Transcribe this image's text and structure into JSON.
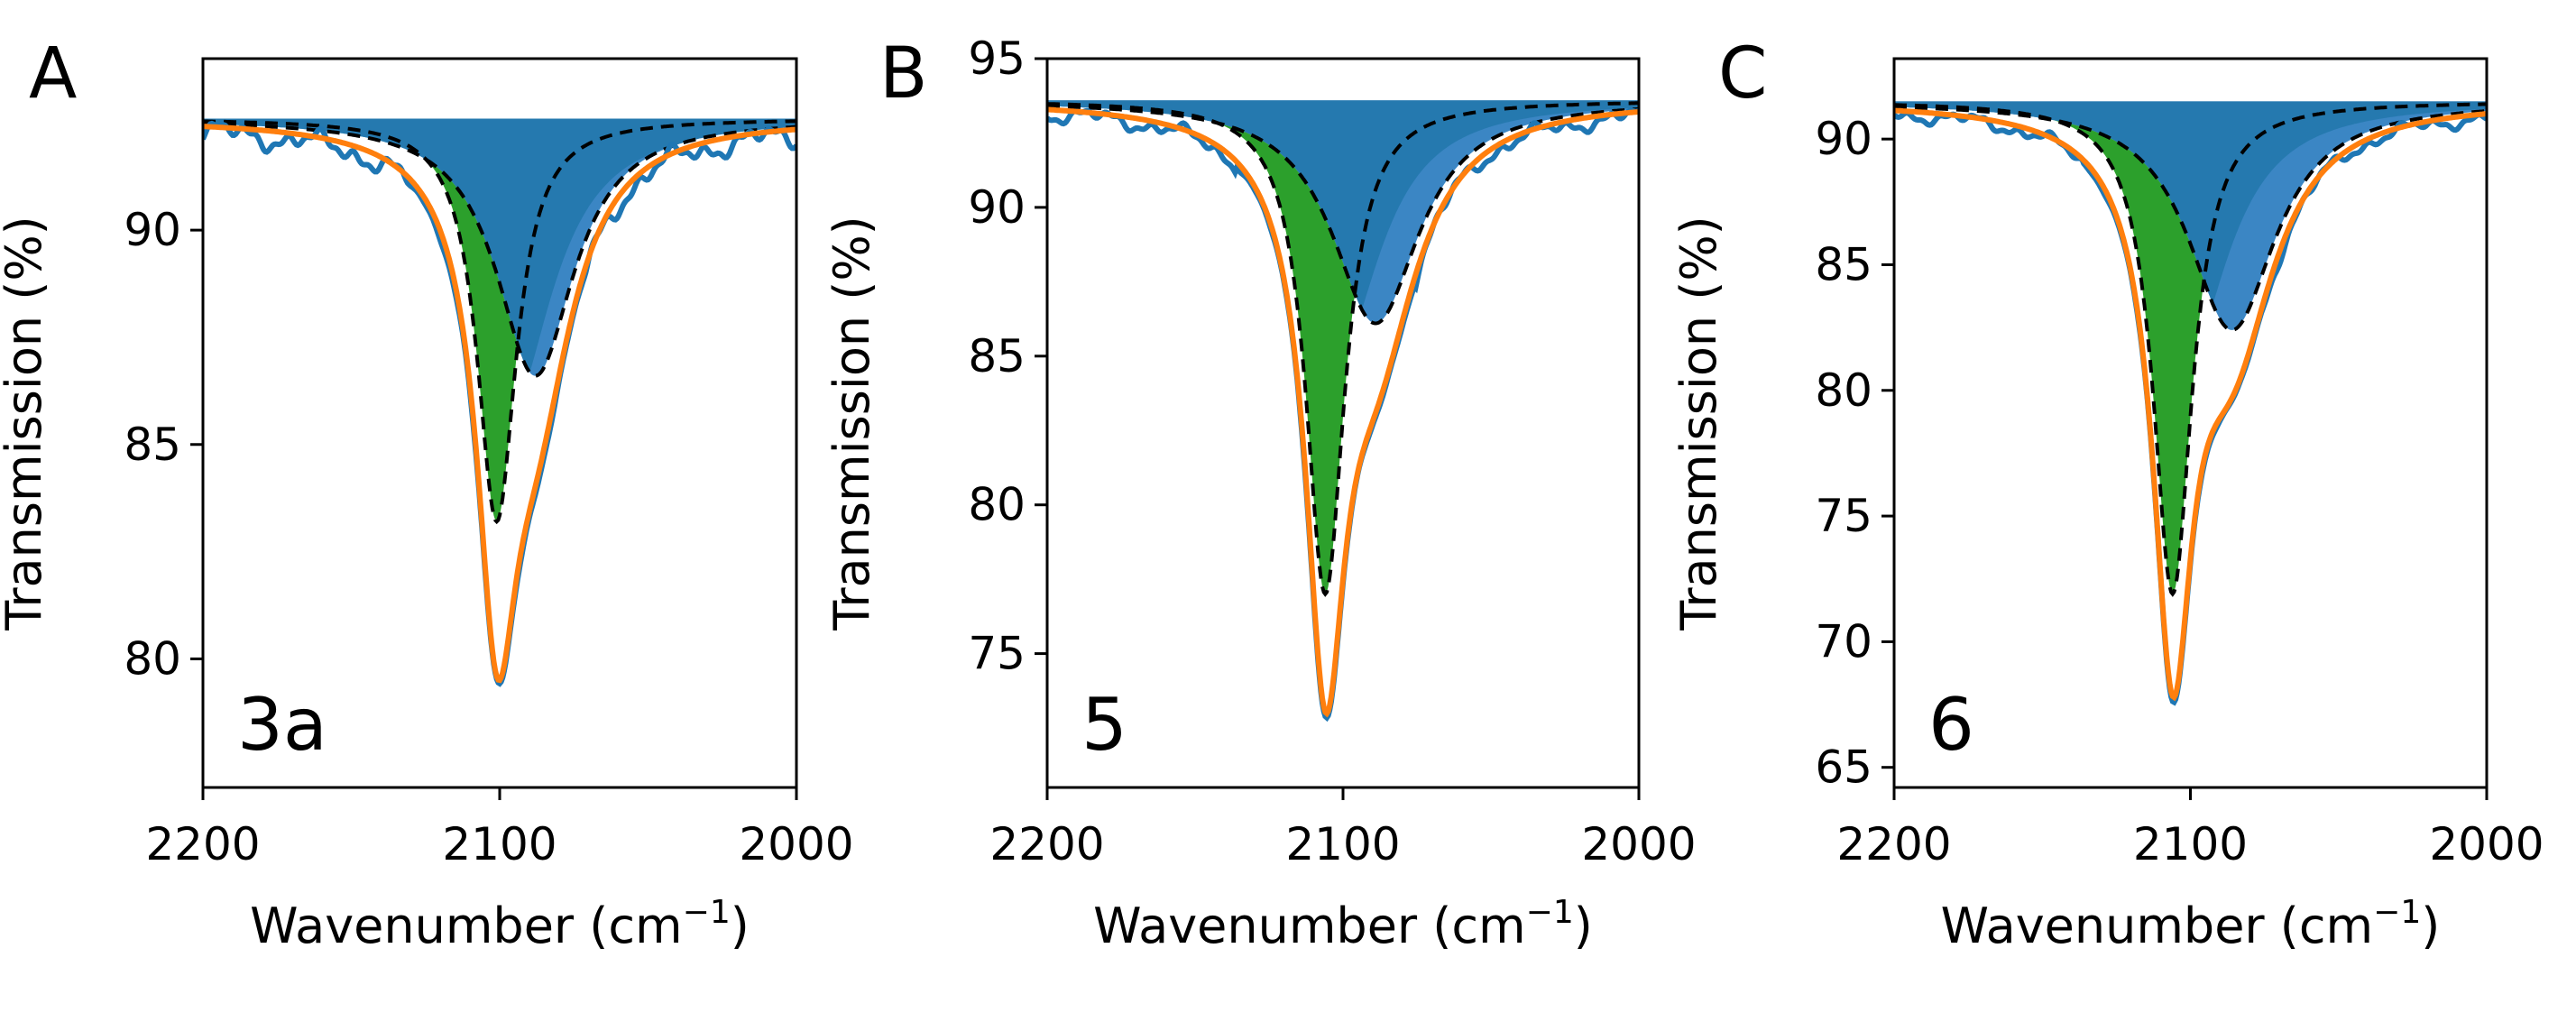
{
  "figure": {
    "description_labels": [
      "A",
      "B",
      "C"
    ]
  },
  "colors": {
    "data_blue": "#1f77b4",
    "fit_orange": "#ff7f0e",
    "component_green": "#2ca02c",
    "component_blue_dark": "#1f77b4",
    "component_blue_light": "#3b86c4",
    "dashed_black": "#000000"
  },
  "chart_data": [
    {
      "type": "line",
      "panel_letter": "A",
      "sample_label": "3a",
      "xlabel": "Wavenumber (cm",
      "xlabel_sup": "−1",
      "xlabel_close": ")",
      "ylabel": "Transmission (%)",
      "xlim": [
        2200,
        2000
      ],
      "ylim": [
        77,
        94
      ],
      "x_ticks": [
        2200,
        2100,
        2000
      ],
      "x_tick_labels": [
        "2200",
        "2100",
        "2000"
      ],
      "y_ticks": [
        80,
        85,
        90
      ],
      "y_tick_labels": [
        "80",
        "85",
        "90"
      ],
      "baseline": 92.6,
      "components": [
        {
          "name": "green component",
          "center": 2101,
          "width": 8,
          "depth": 9.4
        },
        {
          "name": "blue component",
          "center": 2088,
          "width": 16,
          "depth": 6.0
        }
      ],
      "series": [
        {
          "name": "data",
          "color": "#1f77b4"
        },
        {
          "name": "fit",
          "color": "#ff7f0e"
        },
        {
          "name": "component sum",
          "style": "dashed"
        }
      ]
    },
    {
      "type": "line",
      "panel_letter": "B",
      "sample_label": "5",
      "xlabel": "Wavenumber (cm",
      "xlabel_sup": "−1",
      "xlabel_close": ")",
      "ylabel": "Transmission (%)",
      "xlim": [
        2200,
        2000
      ],
      "ylim": [
        70.5,
        95
      ],
      "x_ticks": [
        2200,
        2100,
        2000
      ],
      "x_tick_labels": [
        "2200",
        "2100",
        "2000"
      ],
      "y_ticks": [
        75,
        80,
        85,
        90,
        95
      ],
      "y_tick_labels": [
        "75",
        "80",
        "85",
        "90",
        "95"
      ],
      "baseline": 93.6,
      "components": [
        {
          "name": "green component",
          "center": 2106,
          "width": 8,
          "depth": 16.6
        },
        {
          "name": "blue component",
          "center": 2089,
          "width": 18,
          "depth": 7.5
        }
      ],
      "series": [
        {
          "name": "data",
          "color": "#1f77b4"
        },
        {
          "name": "fit",
          "color": "#ff7f0e"
        },
        {
          "name": "component sum",
          "style": "dashed"
        }
      ]
    },
    {
      "type": "line",
      "panel_letter": "C",
      "sample_label": "6",
      "xlabel": "Wavenumber (cm",
      "xlabel_sup": "−1",
      "xlabel_close": ")",
      "ylabel": "Transmission (%)",
      "xlim": [
        2200,
        2000
      ],
      "ylim": [
        64.2,
        93.2
      ],
      "x_ticks": [
        2200,
        2100,
        2000
      ],
      "x_tick_labels": [
        "2200",
        "2100",
        "2000"
      ],
      "y_ticks": [
        65,
        70,
        75,
        80,
        85,
        90
      ],
      "y_tick_labels": [
        "65",
        "70",
        "75",
        "80",
        "85",
        "90"
      ],
      "baseline": 91.5,
      "components": [
        {
          "name": "green component",
          "center": 2106,
          "width": 8,
          "depth": 19.6
        },
        {
          "name": "blue component",
          "center": 2086,
          "width": 18,
          "depth": 9.1
        }
      ],
      "series": [
        {
          "name": "data",
          "color": "#1f77b4"
        },
        {
          "name": "fit",
          "color": "#ff7f0e"
        },
        {
          "name": "component sum",
          "style": "dashed"
        }
      ]
    }
  ]
}
